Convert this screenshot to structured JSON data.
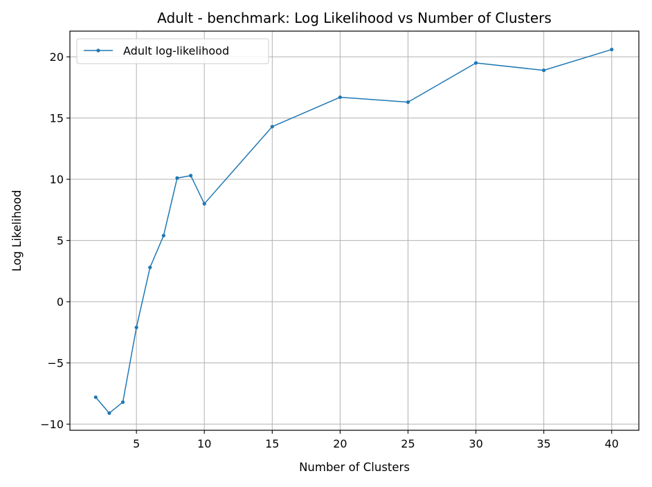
{
  "chart_data": {
    "type": "line",
    "title": "Adult - benchmark: Log Likelihood vs Number of Clusters",
    "xlabel": "Number of Clusters",
    "ylabel": "Log Likelihood",
    "xlim": [
      0.1,
      42
    ],
    "ylim": [
      -10.5,
      22.1
    ],
    "xticks": [
      5,
      10,
      15,
      20,
      25,
      30,
      35,
      40
    ],
    "xtick_labels": [
      "5",
      "10",
      "15",
      "20",
      "25",
      "30",
      "35",
      "40"
    ],
    "yticks": [
      -10,
      -5,
      0,
      5,
      10,
      15,
      20
    ],
    "ytick_labels": [
      "−10",
      "−5",
      "0",
      "5",
      "10",
      "15",
      "20"
    ],
    "grid": true,
    "legend_position": "upper-left",
    "series": [
      {
        "name": "Adult log-likelihood",
        "color": "#1f77b4",
        "marker": "circle",
        "x": [
          2,
          3,
          4,
          5,
          6,
          7,
          8,
          9,
          10,
          15,
          20,
          25,
          30,
          35,
          40
        ],
        "y": [
          -7.8,
          -9.1,
          -8.2,
          -2.1,
          2.8,
          5.4,
          10.1,
          10.3,
          8.0,
          14.3,
          16.7,
          16.3,
          19.5,
          18.9,
          20.6
        ]
      }
    ]
  }
}
